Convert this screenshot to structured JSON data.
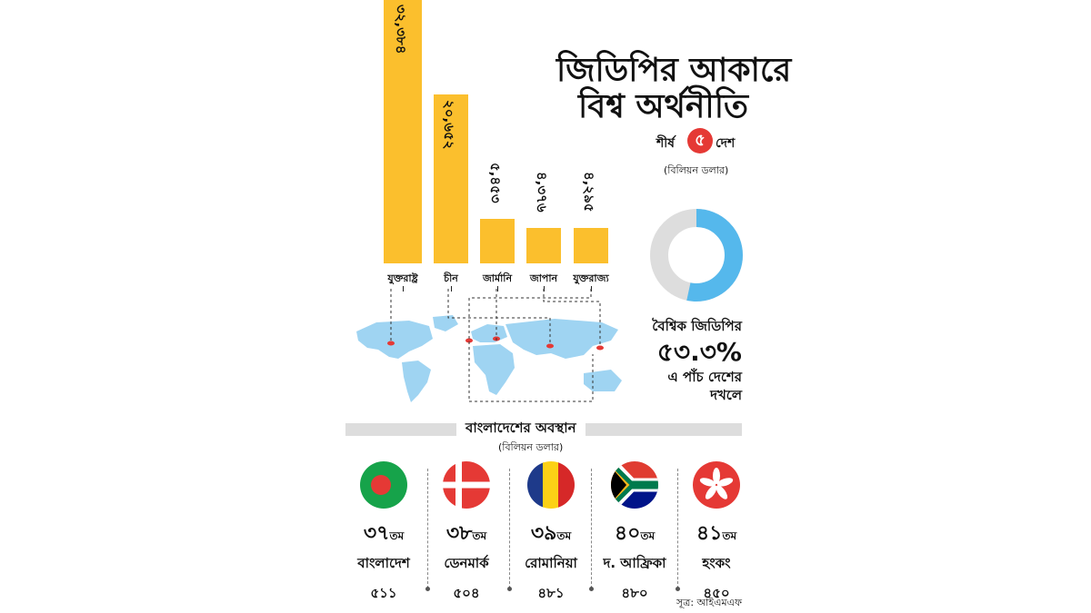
{
  "header": {
    "title_line1": "জিডিপির আকারে",
    "title_line2": "বিশ্ব অর্থনীতি",
    "top_prefix": "শীর্ষ",
    "top_num": "৫",
    "top_suffix": "দেশ",
    "unit": "(বিলিয়ন ডলার)"
  },
  "chart_data": {
    "type": "bar",
    "categories": [
      "যুক্তরাষ্ট্র",
      "চীন",
      "জার্মানি",
      "জাপান",
      "যুক্তরাজ্য"
    ],
    "values": [
      32384,
      20652,
      5453,
      4376,
      4295
    ],
    "value_labels": [
      "৩২,৩৮৪",
      "২০,৬৫২",
      "৫,৪৫৩",
      "৪,৩৭৬",
      "৪,২৯৫"
    ],
    "ylim": [
      0,
      34000
    ],
    "color": "#fbbf2d"
  },
  "share": {
    "label_top": "বৈশ্বিক জিডিপির",
    "value_text": "৫৩.৩%",
    "fraction": 0.533,
    "label_bottom1": "এ পাঁচ দেশের",
    "label_bottom2": "দখলে",
    "color_share": "#55b8ec",
    "color_rest": "#dddddd"
  },
  "bangladesh": {
    "heading": "বাংলাদেশের অবস্থান",
    "unit": "(বিলিয়ন ডলার)",
    "countries": [
      {
        "rank": "৩৭",
        "suffix": "তম",
        "name": "বাংলাদেশ",
        "value": "৫১১",
        "flag": "bangladesh-flag-icon"
      },
      {
        "rank": "৩৮",
        "suffix": "তম",
        "name": "ডেনমার্ক",
        "value": "৫০৪",
        "flag": "denmark-flag-icon"
      },
      {
        "rank": "৩৯",
        "suffix": "তম",
        "name": "রোমানিয়া",
        "value": "৪৮১",
        "flag": "romania-flag-icon"
      },
      {
        "rank": "৪০",
        "suffix": "তম",
        "name": "দ. আফ্রিকা",
        "value": "৪৮০",
        "flag": "south-africa-flag-icon"
      },
      {
        "rank": "৪১",
        "suffix": "তম",
        "name": "হংকং",
        "value": "৪৫০",
        "flag": "hong-kong-flag-icon"
      }
    ]
  },
  "source": "সূত্র: আইএমএফ",
  "colors": {
    "map": "#9fd4f2",
    "marker": "#e53935",
    "heading_bar": "#dddddd"
  }
}
